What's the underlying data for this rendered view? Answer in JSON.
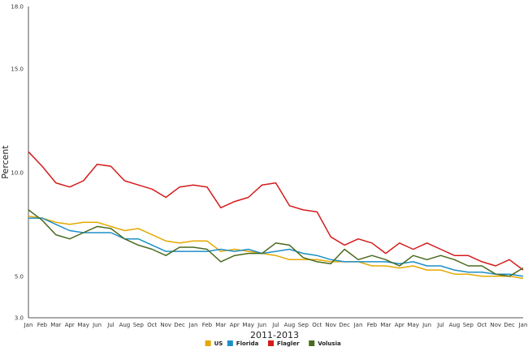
{
  "chart_data": {
    "type": "line",
    "xlabel": "2011-2013",
    "ylabel": "Percent",
    "ylim": [
      3.0,
      18.0
    ],
    "y_ticks": [
      "3.0",
      "5.0",
      "10.0",
      "15.0",
      "18.0"
    ],
    "y_tick_values": [
      3.0,
      5.0,
      10.0,
      15.0,
      18.0
    ],
    "grid": false,
    "legend": "bottom-center",
    "categories": [
      "Jan",
      "Feb",
      "Mar",
      "Apr",
      "May",
      "Jun",
      "Jul",
      "Aug",
      "Sep",
      "Oct",
      "Nov",
      "Dec",
      "Jan",
      "Feb",
      "Mar",
      "Apr",
      "May",
      "Jun",
      "Jul",
      "Aug",
      "Sep",
      "Oct",
      "Nov",
      "Dec",
      "Jan",
      "Feb",
      "Mar",
      "Apr",
      "May",
      "Jun",
      "Jul",
      "Aug",
      "Sep",
      "Oct",
      "Nov",
      "Dec",
      "Jan"
    ],
    "series": [
      {
        "name": "US",
        "color": "#e5a800",
        "values": [
          7.9,
          7.8,
          7.6,
          7.5,
          7.6,
          7.6,
          7.4,
          7.2,
          7.3,
          7.0,
          6.7,
          6.6,
          6.7,
          6.7,
          6.2,
          6.3,
          6.2,
          6.1,
          6.0,
          5.8,
          5.8,
          5.8,
          5.7,
          5.7,
          5.7,
          5.5,
          5.5,
          5.4,
          5.5,
          5.3,
          5.3,
          5.1,
          5.1,
          5.0,
          5.0,
          5.0,
          4.9
        ]
      },
      {
        "name": "Florida",
        "color": "#1c8fc8",
        "values": [
          7.8,
          7.8,
          7.5,
          7.2,
          7.1,
          7.1,
          7.1,
          6.8,
          6.8,
          6.5,
          6.2,
          6.2,
          6.2,
          6.2,
          6.3,
          6.2,
          6.3,
          6.1,
          6.2,
          6.3,
          6.1,
          6.0,
          5.8,
          5.7,
          5.7,
          5.7,
          5.7,
          5.6,
          5.7,
          5.5,
          5.5,
          5.3,
          5.2,
          5.2,
          5.1,
          5.1,
          5.0
        ]
      },
      {
        "name": "Flagler",
        "color": "#d41b1b",
        "values": [
          11.0,
          10.3,
          9.5,
          9.3,
          9.6,
          10.4,
          10.3,
          9.6,
          9.4,
          9.2,
          8.8,
          9.3,
          9.4,
          9.3,
          8.3,
          8.6,
          8.8,
          9.4,
          9.5,
          8.4,
          8.2,
          8.1,
          6.9,
          6.5,
          6.8,
          6.6,
          6.1,
          6.6,
          6.3,
          6.6,
          6.3,
          6.0,
          6.0,
          5.7,
          5.5,
          5.8,
          5.3
        ]
      },
      {
        "name": "Volusia",
        "color": "#4a6a1e",
        "values": [
          8.2,
          7.7,
          7.0,
          6.8,
          7.1,
          7.4,
          7.3,
          6.8,
          6.5,
          6.3,
          6.0,
          6.4,
          6.4,
          6.3,
          5.7,
          6.0,
          6.1,
          6.1,
          6.6,
          6.5,
          5.9,
          5.7,
          5.6,
          6.3,
          5.8,
          6.0,
          5.8,
          5.5,
          6.0,
          5.8,
          6.0,
          5.8,
          5.5,
          5.5,
          5.1,
          5.0,
          5.4
        ]
      }
    ]
  }
}
